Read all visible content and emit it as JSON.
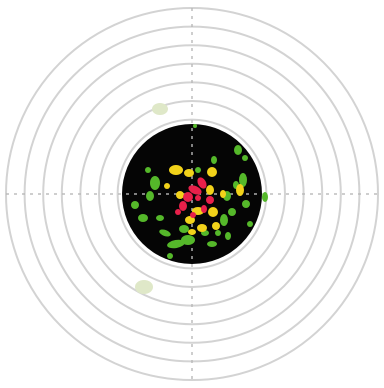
{
  "target": {
    "ring_count": 10,
    "black_ring_count": 4,
    "colors": {
      "background": "#ffffff",
      "ring_line": "#d3d3d3",
      "black_zone": "#050505",
      "crosshair": "#b8b8b8",
      "hit_red": "#e8204a",
      "hit_yellow": "#f2d21a",
      "hit_green": "#55b82a",
      "stray_hit": "#dfe8c8"
    }
  }
}
